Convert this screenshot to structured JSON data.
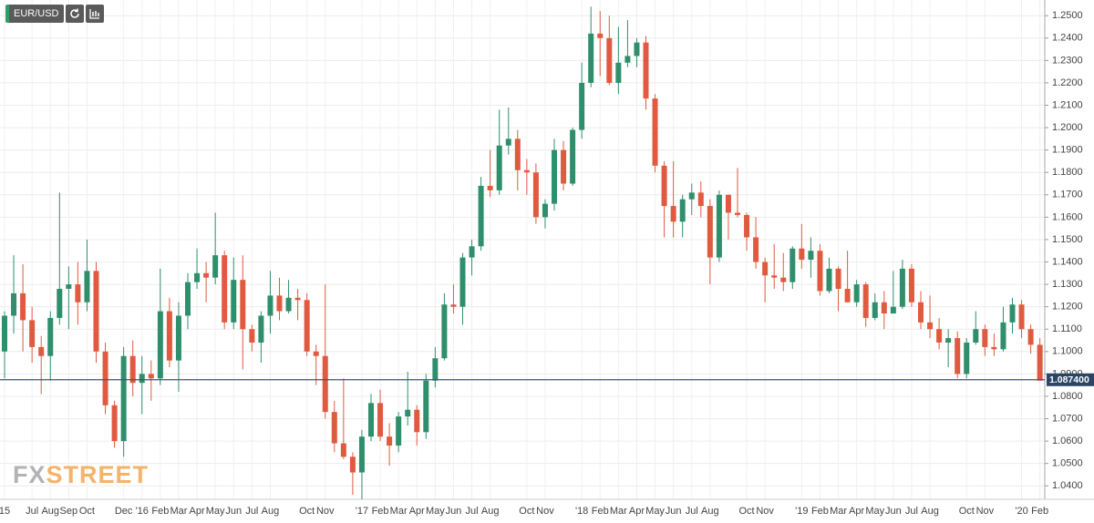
{
  "toolbar": {
    "symbol": "EUR/USD"
  },
  "watermark": {
    "fx": "FX",
    "street": "STREET"
  },
  "chart_data": {
    "type": "candlestick",
    "up_color": "#2f8f6c",
    "down_color": "#e05a40",
    "grid": true,
    "categories": [
      "15",
      null,
      null,
      "Jul",
      null,
      "Aug",
      null,
      "Sep",
      null,
      "Oct",
      null,
      null,
      null,
      "Dec",
      null,
      "'16",
      null,
      "Feb",
      null,
      "Mar",
      null,
      "Apr",
      null,
      "May",
      null,
      "Jun",
      null,
      "Jul",
      null,
      "Aug",
      null,
      null,
      null,
      "Oct",
      null,
      "Nov",
      null,
      null,
      null,
      "'17",
      null,
      "Feb",
      null,
      "Mar",
      null,
      "Apr",
      null,
      "May",
      null,
      "Jun",
      null,
      "Jul",
      null,
      "Aug",
      null,
      null,
      null,
      "Oct",
      null,
      "Nov",
      null,
      null,
      null,
      "'18",
      null,
      "Feb",
      null,
      "Mar",
      null,
      "Apr",
      null,
      "May",
      null,
      "Jun",
      null,
      "Jul",
      null,
      "Aug",
      null,
      null,
      null,
      "Oct",
      null,
      "Nov",
      null,
      null,
      null,
      "'19",
      null,
      "Feb",
      null,
      "Mar",
      null,
      "Apr",
      null,
      "May",
      null,
      "Jun",
      null,
      "Jul",
      null,
      "Aug",
      null,
      null,
      null,
      "Oct",
      null,
      "Nov",
      null,
      null,
      null,
      "'20",
      null,
      "Feb"
    ],
    "open": [
      1.1,
      1.116,
      1.126,
      1.114,
      1.102,
      1.098,
      1.115,
      1.128,
      1.13,
      1.122,
      1.136,
      1.1,
      1.076,
      1.06,
      1.098,
      1.086,
      1.09,
      1.088,
      1.118,
      1.096,
      1.116,
      1.131,
      1.135,
      1.133,
      1.143,
      1.113,
      1.132,
      1.11,
      1.104,
      1.116,
      1.125,
      1.118,
      1.124,
      1.123,
      1.1,
      1.098,
      1.073,
      1.059,
      1.053,
      1.046,
      1.062,
      1.077,
      1.062,
      1.058,
      1.071,
      1.074,
      1.064,
      1.087,
      1.097,
      1.121,
      1.12,
      1.142,
      1.147,
      1.174,
      1.172,
      1.192,
      1.195,
      1.181,
      1.18,
      1.16,
      1.166,
      1.19,
      1.175,
      1.199,
      1.22,
      1.242,
      1.24,
      1.22,
      1.229,
      1.232,
      1.238,
      1.213,
      1.183,
      1.165,
      1.158,
      1.168,
      1.171,
      1.165,
      1.142,
      1.17,
      1.162,
      1.161,
      1.151,
      1.14,
      1.134,
      1.133,
      1.131,
      1.146,
      1.141,
      1.145,
      1.127,
      1.137,
      1.128,
      1.122,
      1.13,
      1.115,
      1.122,
      1.117,
      1.12,
      1.137,
      1.122,
      1.113,
      1.11,
      1.104,
      1.106,
      1.09,
      1.104,
      1.11,
      1.102,
      1.101,
      1.113,
      1.121,
      1.11,
      1.103
    ],
    "high": [
      1.118,
      1.143,
      1.139,
      1.12,
      1.107,
      1.118,
      1.171,
      1.138,
      1.14,
      1.15,
      1.14,
      1.104,
      1.078,
      1.102,
      1.105,
      1.098,
      1.096,
      1.137,
      1.124,
      1.122,
      1.135,
      1.146,
      1.14,
      1.162,
      1.145,
      1.142,
      1.143,
      1.112,
      1.118,
      1.136,
      1.133,
      1.132,
      1.128,
      1.126,
      1.103,
      1.13,
      1.078,
      1.088,
      1.055,
      1.065,
      1.081,
      1.083,
      1.068,
      1.073,
      1.091,
      1.076,
      1.09,
      1.102,
      1.126,
      1.13,
      1.144,
      1.15,
      1.178,
      1.19,
      1.208,
      1.209,
      1.199,
      1.186,
      1.184,
      1.168,
      1.195,
      1.194,
      1.2,
      1.229,
      1.254,
      1.252,
      1.25,
      1.245,
      1.248,
      1.24,
      1.241,
      1.215,
      1.185,
      1.185,
      1.17,
      1.175,
      1.176,
      1.168,
      1.172,
      1.17,
      1.182,
      1.162,
      1.16,
      1.142,
      1.148,
      1.144,
      1.147,
      1.157,
      1.151,
      1.148,
      1.142,
      1.138,
      1.145,
      1.132,
      1.131,
      1.126,
      1.127,
      1.136,
      1.141,
      1.139,
      1.127,
      1.125,
      1.115,
      1.11,
      1.109,
      1.106,
      1.118,
      1.112,
      1.108,
      1.12,
      1.124,
      1.123,
      1.112,
      1.106
    ],
    "low": [
      1.088,
      1.108,
      1.1,
      1.095,
      1.081,
      1.087,
      1.112,
      1.11,
      1.112,
      1.118,
      1.095,
      1.072,
      1.057,
      1.053,
      1.08,
      1.072,
      1.078,
      1.085,
      1.093,
      1.082,
      1.11,
      1.128,
      1.122,
      1.13,
      1.11,
      1.11,
      1.092,
      1.1,
      1.095,
      1.108,
      1.114,
      1.117,
      1.114,
      1.098,
      1.085,
      1.07,
      1.055,
      1.052,
      1.036,
      1.034,
      1.06,
      1.06,
      1.049,
      1.055,
      1.067,
      1.058,
      1.061,
      1.084,
      1.096,
      1.117,
      1.112,
      1.134,
      1.145,
      1.169,
      1.17,
      1.188,
      1.172,
      1.17,
      1.157,
      1.155,
      1.163,
      1.172,
      1.174,
      1.195,
      1.218,
      1.223,
      1.219,
      1.215,
      1.227,
      1.227,
      1.208,
      1.18,
      1.151,
      1.151,
      1.151,
      1.161,
      1.16,
      1.13,
      1.14,
      1.15,
      1.16,
      1.145,
      1.137,
      1.122,
      1.128,
      1.127,
      1.128,
      1.137,
      1.133,
      1.125,
      1.126,
      1.118,
      1.122,
      1.12,
      1.111,
      1.114,
      1.11,
      1.117,
      1.119,
      1.12,
      1.11,
      1.106,
      1.101,
      1.093,
      1.088,
      1.088,
      1.103,
      1.098,
      1.098,
      1.1,
      1.108,
      1.106,
      1.099,
      1.087
    ],
    "close": [
      1.116,
      1.126,
      1.114,
      1.102,
      1.098,
      1.115,
      1.128,
      1.13,
      1.122,
      1.136,
      1.1,
      1.076,
      1.06,
      1.098,
      1.086,
      1.09,
      1.088,
      1.118,
      1.096,
      1.116,
      1.131,
      1.135,
      1.133,
      1.143,
      1.113,
      1.132,
      1.11,
      1.104,
      1.116,
      1.125,
      1.118,
      1.124,
      1.123,
      1.1,
      1.098,
      1.073,
      1.059,
      1.053,
      1.046,
      1.062,
      1.077,
      1.062,
      1.058,
      1.071,
      1.074,
      1.064,
      1.087,
      1.097,
      1.121,
      1.12,
      1.142,
      1.147,
      1.174,
      1.172,
      1.192,
      1.195,
      1.181,
      1.18,
      1.16,
      1.166,
      1.19,
      1.175,
      1.199,
      1.22,
      1.242,
      1.24,
      1.22,
      1.229,
      1.232,
      1.238,
      1.213,
      1.183,
      1.165,
      1.158,
      1.168,
      1.171,
      1.165,
      1.142,
      1.17,
      1.162,
      1.161,
      1.151,
      1.14,
      1.134,
      1.133,
      1.131,
      1.146,
      1.141,
      1.145,
      1.127,
      1.137,
      1.128,
      1.122,
      1.13,
      1.115,
      1.122,
      1.117,
      1.12,
      1.137,
      1.122,
      1.113,
      1.11,
      1.104,
      1.106,
      1.09,
      1.104,
      1.11,
      1.102,
      1.101,
      1.113,
      1.121,
      1.11,
      1.103,
      1.087
    ],
    "last_price": {
      "value": 1.0874,
      "label": "1.087400"
    },
    "ylim": [
      1.034,
      1.257
    ],
    "yticks": [
      {
        "value": 1.04,
        "label": "1.0400"
      },
      {
        "value": 1.05,
        "label": "1.0500"
      },
      {
        "value": 1.06,
        "label": "1.0600"
      },
      {
        "value": 1.07,
        "label": "1.0700"
      },
      {
        "value": 1.08,
        "label": "1.0800"
      },
      {
        "value": 1.09,
        "label": "1.0900"
      },
      {
        "value": 1.1,
        "label": "1.1000"
      },
      {
        "value": 1.11,
        "label": "1.1100"
      },
      {
        "value": 1.12,
        "label": "1.1200"
      },
      {
        "value": 1.13,
        "label": "1.1300"
      },
      {
        "value": 1.14,
        "label": "1.1400"
      },
      {
        "value": 1.15,
        "label": "1.1500"
      },
      {
        "value": 1.16,
        "label": "1.1600"
      },
      {
        "value": 1.17,
        "label": "1.1700"
      },
      {
        "value": 1.18,
        "label": "1.1800"
      },
      {
        "value": 1.19,
        "label": "1.1900"
      },
      {
        "value": 1.2,
        "label": "1.2000"
      },
      {
        "value": 1.21,
        "label": "1.2100"
      },
      {
        "value": 1.22,
        "label": "1.2200"
      },
      {
        "value": 1.23,
        "label": "1.2300"
      },
      {
        "value": 1.24,
        "label": "1.2400"
      },
      {
        "value": 1.25,
        "label": "1.2500"
      }
    ]
  }
}
